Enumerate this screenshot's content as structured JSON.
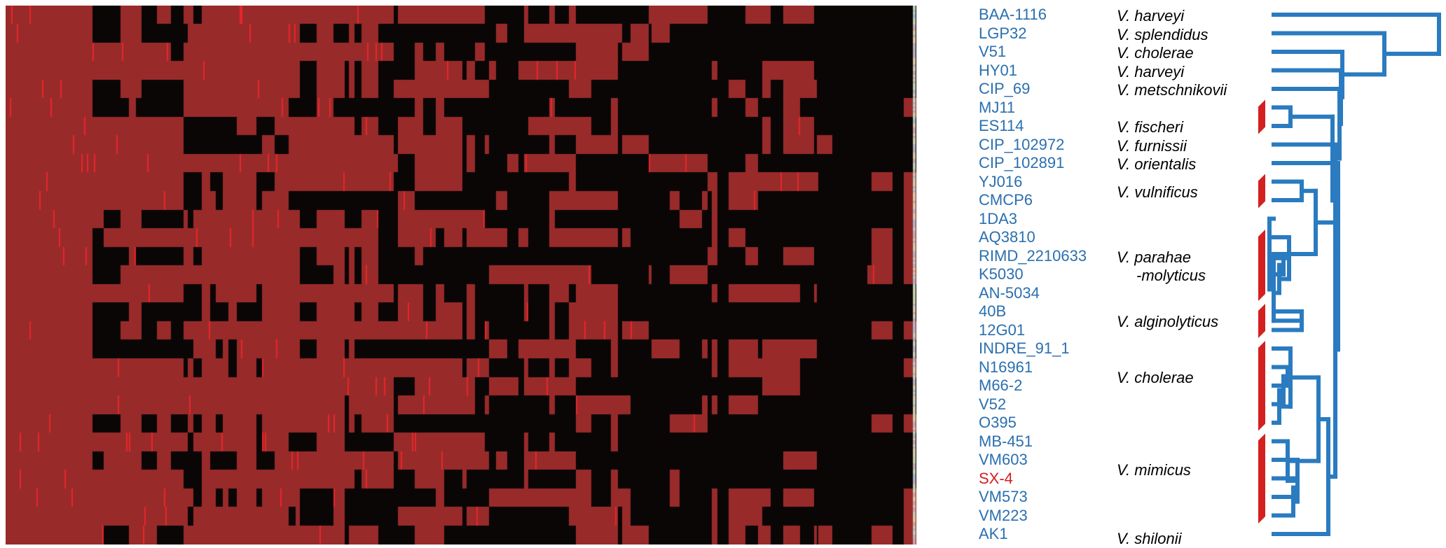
{
  "colors": {
    "absent": "#0a0606",
    "present": "#992a2a",
    "multi": "#e8262a",
    "label": "#2a6faf",
    "highlight": "#d4201f",
    "tree": "#2a7bc0",
    "bracket": "#d4201f"
  },
  "strains": [
    {
      "name": "BAA-1116",
      "highlight": false
    },
    {
      "name": "LGP32",
      "highlight": false
    },
    {
      "name": "V51",
      "highlight": false
    },
    {
      "name": "HY01",
      "highlight": false
    },
    {
      "name": "CIP_69",
      "highlight": false
    },
    {
      "name": "MJ11",
      "highlight": false
    },
    {
      "name": "ES114",
      "highlight": false
    },
    {
      "name": "CIP_102972",
      "highlight": false
    },
    {
      "name": "CIP_102891",
      "highlight": false
    },
    {
      "name": "YJ016",
      "highlight": false
    },
    {
      "name": "CMCP6",
      "highlight": false
    },
    {
      "name": "1DA3",
      "highlight": false
    },
    {
      "name": "AQ3810",
      "highlight": false
    },
    {
      "name": "RIMD_2210633",
      "highlight": false
    },
    {
      "name": "K5030",
      "highlight": false
    },
    {
      "name": "AN-5034",
      "highlight": false
    },
    {
      "name": "40B",
      "highlight": false
    },
    {
      "name": "12G01",
      "highlight": false
    },
    {
      "name": "INDRE_91_1",
      "highlight": false
    },
    {
      "name": "N16961",
      "highlight": false
    },
    {
      "name": "M66-2",
      "highlight": false
    },
    {
      "name": "V52",
      "highlight": false
    },
    {
      "name": "O395",
      "highlight": false
    },
    {
      "name": "MB-451",
      "highlight": false
    },
    {
      "name": "VM603",
      "highlight": false
    },
    {
      "name": "SX-4",
      "highlight": true
    },
    {
      "name": "VM573",
      "highlight": false
    },
    {
      "name": "VM223",
      "highlight": false
    },
    {
      "name": "AK1",
      "highlight": false
    }
  ],
  "species": [
    {
      "line1": "V. harveyi",
      "row": 0
    },
    {
      "line1": "V. splendidus",
      "row": 1
    },
    {
      "line1": "V. cholerae",
      "row": 2
    },
    {
      "line1": "V. harveyi",
      "row": 3
    },
    {
      "line1": "V. metschnikovii",
      "row": 4
    },
    {
      "line1": "V. fischeri",
      "row": 6
    },
    {
      "line1": "V. furnissii",
      "row": 7
    },
    {
      "line1": "V. orientalis",
      "row": 8
    },
    {
      "line1": "V. vulnificus",
      "row": 9.5
    },
    {
      "line1": "V. parahae",
      "line2": "-molyticus",
      "row": 13
    },
    {
      "line1": "V. alginolyticus",
      "row": 16.5
    },
    {
      "line1": "V. cholerae",
      "row": 19.5
    },
    {
      "line1": "V. mimicus",
      "row": 24.5
    },
    {
      "line1": "V. shilonii",
      "row": 28.2
    }
  ],
  "brackets": [
    {
      "from": 5,
      "to": 6
    },
    {
      "from": 9,
      "to": 10
    },
    {
      "from": 12,
      "to": 15
    },
    {
      "from": 16,
      "to": 17
    },
    {
      "from": 18,
      "to": 22
    },
    {
      "from": 23,
      "to": 27
    }
  ]
}
